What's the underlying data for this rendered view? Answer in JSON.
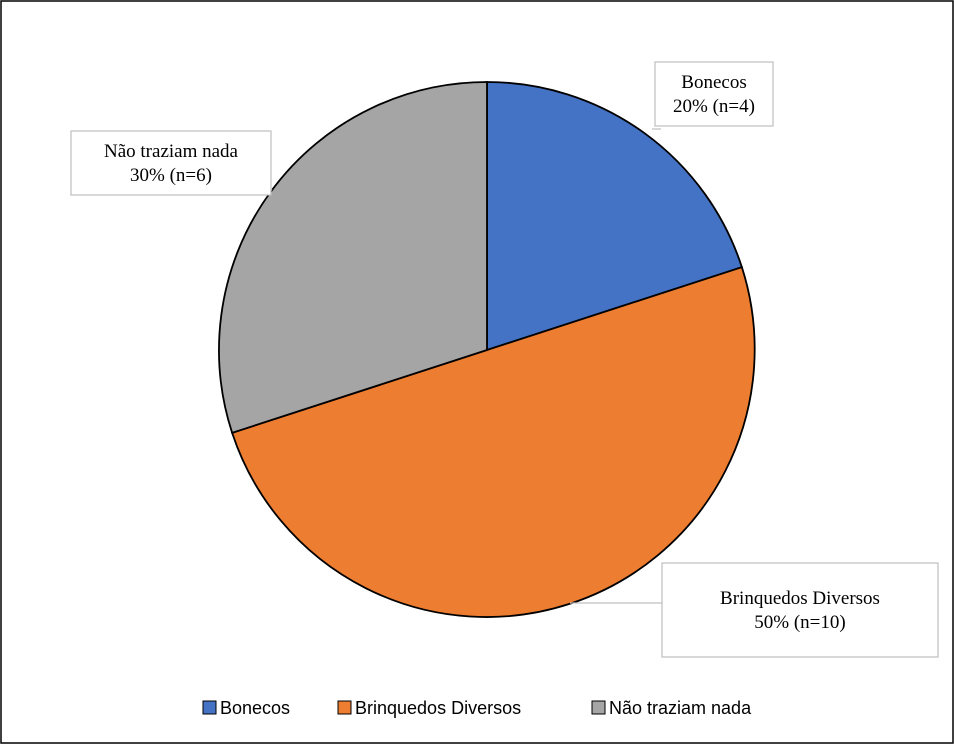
{
  "chart_data": {
    "type": "pie",
    "title": "",
    "series": [
      {
        "values": [
          {
            "label": "Bonecos",
            "value": 20,
            "n": 4,
            "color": "#4472C4",
            "data_label": [
              "Bonecos",
              "20% (n=4)"
            ]
          },
          {
            "label": "Brinquedos Diversos",
            "value": 50,
            "n": 10,
            "color": "#ED7D31",
            "data_label": [
              "Brinquedos Diversos",
              "50% (n=10)"
            ]
          },
          {
            "label": "Não traziam nada",
            "value": 30,
            "n": 6,
            "color": "#A5A5A5",
            "data_label": [
              "Não traziam nada",
              "30% (n=6)"
            ]
          }
        ]
      }
    ],
    "legend": {
      "position": "bottom",
      "entries": [
        "Bonecos",
        "Brinquedos Diversos",
        "Não traziam nada"
      ]
    },
    "start_angle": "12 o'clock",
    "direction": "clockwise"
  }
}
